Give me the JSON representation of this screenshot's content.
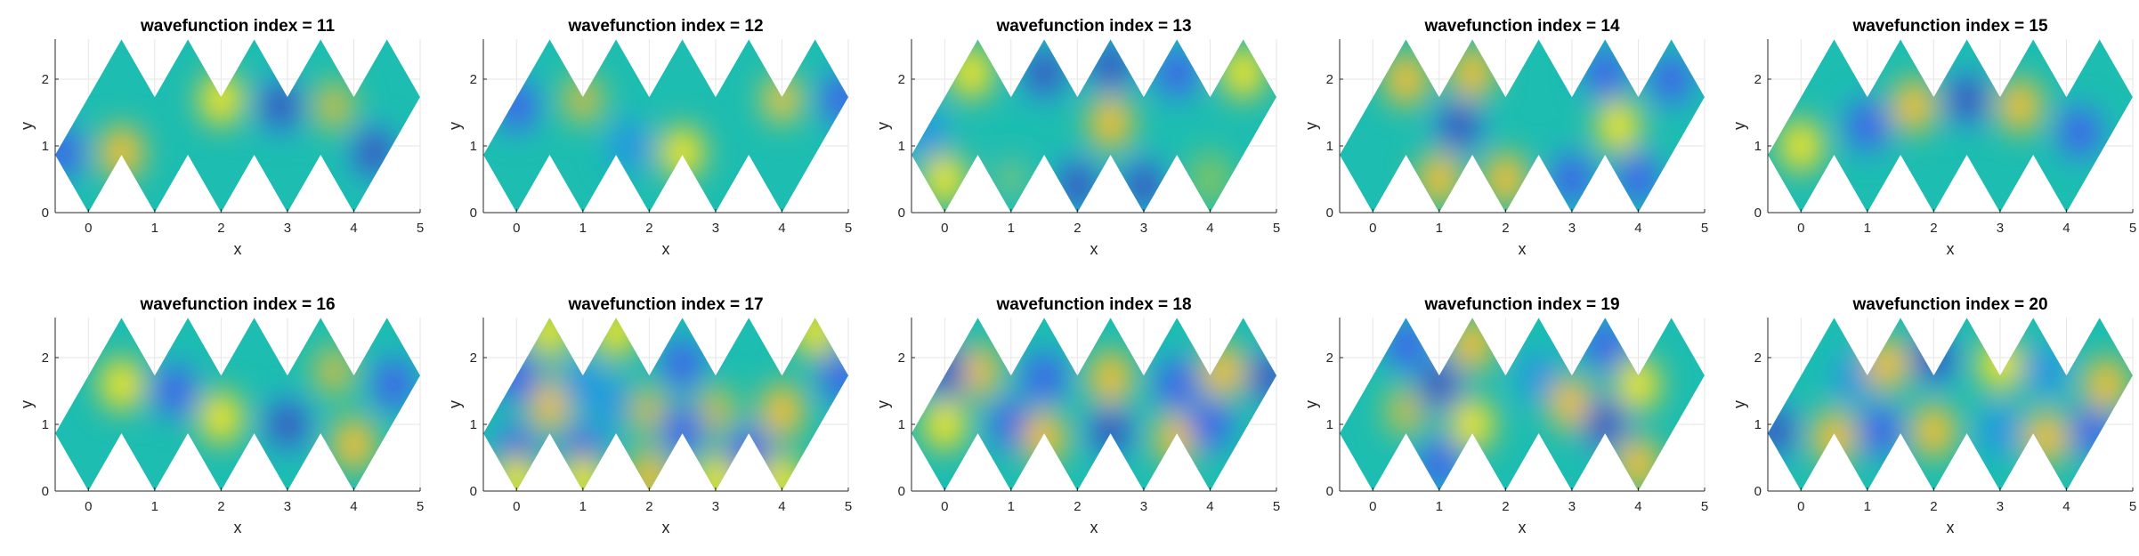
{
  "figure": {
    "layout": {
      "rows": 2,
      "cols": 5
    },
    "colormap": [
      "#3e26a8",
      "#4746eb",
      "#2f8ae6",
      "#1aa9d8",
      "#1dbdb1",
      "#79c468",
      "#d7ba3b",
      "#fdc332",
      "#f9fb15"
    ]
  },
  "chart_data": [
    {
      "type": "heatmap",
      "title": "wavefunction index = 11",
      "xlabel": "x",
      "ylabel": "y",
      "xlim": [
        -0.5,
        5
      ],
      "ylim": [
        0,
        2.6
      ],
      "xticks": [
        "0",
        "1",
        "2",
        "3",
        "4",
        "5"
      ],
      "yticks": [
        "0",
        "1",
        "2"
      ],
      "grid": true,
      "extrema": [
        {
          "x": 0.5,
          "y": 0.9,
          "v": 0.75
        },
        {
          "x": 2.0,
          "y": 1.7,
          "v": 0.9
        },
        {
          "x": 2.9,
          "y": 1.6,
          "v": -0.95
        },
        {
          "x": 3.7,
          "y": 1.6,
          "v": 0.55
        },
        {
          "x": 4.3,
          "y": 0.9,
          "v": -0.95
        },
        {
          "x": -0.4,
          "y": 0.9,
          "v": -0.7
        }
      ]
    },
    {
      "type": "heatmap",
      "title": "wavefunction index = 12",
      "xlabel": "x",
      "ylabel": "y",
      "xlim": [
        -0.5,
        5
      ],
      "ylim": [
        0,
        2.6
      ],
      "xticks": [
        "0",
        "1",
        "2",
        "3",
        "4",
        "5"
      ],
      "yticks": [
        "0",
        "1",
        "2"
      ],
      "grid": true,
      "extrema": [
        {
          "x": 0.0,
          "y": 1.6,
          "v": -0.85
        },
        {
          "x": 1.0,
          "y": 1.7,
          "v": 0.55
        },
        {
          "x": 2.5,
          "y": 0.9,
          "v": 0.95
        },
        {
          "x": 4.0,
          "y": 1.7,
          "v": 0.65
        },
        {
          "x": 4.9,
          "y": 1.7,
          "v": -0.8
        },
        {
          "x": 1.7,
          "y": 1.0,
          "v": -0.5
        }
      ]
    },
    {
      "type": "heatmap",
      "title": "wavefunction index = 13",
      "xlabel": "x",
      "ylabel": "y",
      "xlim": [
        -0.5,
        5
      ],
      "ylim": [
        0,
        2.6
      ],
      "xticks": [
        "0",
        "1",
        "2",
        "3",
        "4",
        "5"
      ],
      "yticks": [
        "0",
        "1",
        "2"
      ],
      "grid": true,
      "extrema": [
        {
          "x": 2.5,
          "y": 1.35,
          "v": 0.75
        },
        {
          "x": 0.4,
          "y": 2.1,
          "v": 0.9
        },
        {
          "x": 1.5,
          "y": 2.1,
          "v": -0.9
        },
        {
          "x": 2.5,
          "y": 2.2,
          "v": -0.9
        },
        {
          "x": 3.5,
          "y": 2.1,
          "v": -0.8
        },
        {
          "x": 4.5,
          "y": 2.1,
          "v": 0.9
        },
        {
          "x": 0.0,
          "y": 0.5,
          "v": 0.9
        },
        {
          "x": 1.0,
          "y": 0.5,
          "v": 0.2
        },
        {
          "x": 2.0,
          "y": 0.4,
          "v": -0.9
        },
        {
          "x": 3.0,
          "y": 0.4,
          "v": -0.9
        },
        {
          "x": 4.0,
          "y": 0.5,
          "v": 0.3
        },
        {
          "x": -0.3,
          "y": 1.2,
          "v": -0.6
        }
      ]
    },
    {
      "type": "heatmap",
      "title": "wavefunction index = 14",
      "xlabel": "x",
      "ylabel": "y",
      "xlim": [
        -0.5,
        5
      ],
      "ylim": [
        0,
        2.6
      ],
      "xticks": [
        "0",
        "1",
        "2",
        "3",
        "4",
        "5"
      ],
      "yticks": [
        "0",
        "1",
        "2"
      ],
      "grid": true,
      "extrema": [
        {
          "x": 1.3,
          "y": 1.3,
          "v": -0.9
        },
        {
          "x": 3.7,
          "y": 1.3,
          "v": 0.9
        },
        {
          "x": 0.5,
          "y": 2.0,
          "v": 0.85
        },
        {
          "x": 1.5,
          "y": 2.1,
          "v": 0.85
        },
        {
          "x": 3.5,
          "y": 2.1,
          "v": -0.85
        },
        {
          "x": 4.5,
          "y": 2.0,
          "v": -0.85
        },
        {
          "x": 1.0,
          "y": 0.5,
          "v": 0.8
        },
        {
          "x": 2.0,
          "y": 0.5,
          "v": 0.8
        },
        {
          "x": 3.0,
          "y": 0.5,
          "v": -0.8
        },
        {
          "x": 4.0,
          "y": 0.5,
          "v": -0.8
        }
      ]
    },
    {
      "type": "heatmap",
      "title": "wavefunction index = 15",
      "xlabel": "x",
      "ylabel": "y",
      "xlim": [
        -0.5,
        5
      ],
      "ylim": [
        0,
        2.6
      ],
      "xticks": [
        "0",
        "1",
        "2",
        "3",
        "4",
        "5"
      ],
      "yticks": [
        "0",
        "1",
        "2"
      ],
      "grid": true,
      "extrema": [
        {
          "x": 0.0,
          "y": 1.0,
          "v": 0.95
        },
        {
          "x": 1.0,
          "y": 1.3,
          "v": -0.8
        },
        {
          "x": 1.7,
          "y": 1.6,
          "v": 0.8
        },
        {
          "x": 2.5,
          "y": 1.7,
          "v": -0.9
        },
        {
          "x": 3.3,
          "y": 1.6,
          "v": 0.8
        },
        {
          "x": 4.2,
          "y": 1.2,
          "v": -0.8
        }
      ]
    },
    {
      "type": "heatmap",
      "title": "wavefunction index = 16",
      "xlabel": "x",
      "ylabel": "y",
      "xlim": [
        -0.5,
        5
      ],
      "ylim": [
        0,
        2.6
      ],
      "xticks": [
        "0",
        "1",
        "2",
        "3",
        "4",
        "5"
      ],
      "yticks": [
        "0",
        "1",
        "2"
      ],
      "grid": true,
      "extrema": [
        {
          "x": 0.5,
          "y": 1.6,
          "v": 0.95
        },
        {
          "x": 1.3,
          "y": 1.5,
          "v": -0.7
        },
        {
          "x": 2.0,
          "y": 1.1,
          "v": 0.9
        },
        {
          "x": 3.0,
          "y": 1.0,
          "v": -0.9
        },
        {
          "x": 4.0,
          "y": 0.7,
          "v": 0.7
        },
        {
          "x": 4.6,
          "y": 1.6,
          "v": -0.85
        },
        {
          "x": 3.7,
          "y": 1.8,
          "v": 0.5
        }
      ]
    },
    {
      "type": "heatmap",
      "title": "wavefunction index = 17",
      "xlabel": "x",
      "ylabel": "y",
      "xlim": [
        -0.5,
        5
      ],
      "ylim": [
        0,
        2.6
      ],
      "xticks": [
        "0",
        "1",
        "2",
        "3",
        "4",
        "5"
      ],
      "yticks": [
        "0",
        "1",
        "2"
      ],
      "grid": true,
      "extrema": [
        {
          "x": 0.5,
          "y": 1.3,
          "v": 0.75
        },
        {
          "x": 1.5,
          "y": 1.3,
          "v": -0.6
        },
        {
          "x": 2.0,
          "y": 1.2,
          "v": 0.6
        },
        {
          "x": 3.0,
          "y": 1.2,
          "v": 0.6
        },
        {
          "x": 4.0,
          "y": 1.2,
          "v": 0.75
        },
        {
          "x": 0.0,
          "y": 1.7,
          "v": -0.8
        },
        {
          "x": 1.0,
          "y": 1.6,
          "v": -0.6
        },
        {
          "x": 2.5,
          "y": 1.9,
          "v": -0.8
        },
        {
          "x": 4.9,
          "y": 1.7,
          "v": -0.8
        },
        {
          "x": 0.0,
          "y": 0.6,
          "v": -0.7
        },
        {
          "x": 1.0,
          "y": 0.6,
          "v": -0.7
        },
        {
          "x": 2.5,
          "y": 0.9,
          "v": -0.8
        },
        {
          "x": 3.5,
          "y": 0.6,
          "v": -0.7
        },
        {
          "x": 0.5,
          "y": 2.4,
          "v": 0.9
        },
        {
          "x": 1.5,
          "y": 2.4,
          "v": 0.9
        },
        {
          "x": 4.5,
          "y": 2.4,
          "v": 0.9
        },
        {
          "x": 0.0,
          "y": 0.15,
          "v": 0.9
        },
        {
          "x": 1.0,
          "y": 0.15,
          "v": 0.9
        },
        {
          "x": 2.0,
          "y": 0.2,
          "v": 0.8
        },
        {
          "x": 3.0,
          "y": 0.15,
          "v": 0.9
        },
        {
          "x": 4.0,
          "y": 0.15,
          "v": 0.9
        }
      ]
    },
    {
      "type": "heatmap",
      "title": "wavefunction index = 18",
      "xlabel": "x",
      "ylabel": "y",
      "xlim": [
        -0.5,
        5
      ],
      "ylim": [
        0,
        2.6
      ],
      "xticks": [
        "0",
        "1",
        "2",
        "3",
        "4",
        "5"
      ],
      "yticks": [
        "0",
        "1",
        "2"
      ],
      "grid": true,
      "extrema": [
        {
          "x": 0.0,
          "y": 1.0,
          "v": 0.95
        },
        {
          "x": 1.0,
          "y": 1.0,
          "v": -0.8
        },
        {
          "x": 1.5,
          "y": 0.8,
          "v": 0.7
        },
        {
          "x": 2.5,
          "y": 0.9,
          "v": -0.9
        },
        {
          "x": 3.5,
          "y": 0.8,
          "v": 0.7
        },
        {
          "x": 4.0,
          "y": 1.0,
          "v": -0.7
        },
        {
          "x": 0.5,
          "y": 1.8,
          "v": 0.8
        },
        {
          "x": 1.5,
          "y": 1.7,
          "v": -0.7
        },
        {
          "x": 2.5,
          "y": 1.7,
          "v": 0.8
        },
        {
          "x": 3.5,
          "y": 1.6,
          "v": -0.7
        },
        {
          "x": 4.2,
          "y": 1.8,
          "v": 0.8
        },
        {
          "x": 4.9,
          "y": 1.7,
          "v": -0.9
        },
        {
          "x": 0.0,
          "y": 1.8,
          "v": -0.9
        }
      ]
    },
    {
      "type": "heatmap",
      "title": "wavefunction index = 19",
      "xlabel": "x",
      "ylabel": "y",
      "xlim": [
        -0.5,
        5
      ],
      "ylim": [
        0,
        2.6
      ],
      "xticks": [
        "0",
        "1",
        "2",
        "3",
        "4",
        "5"
      ],
      "yticks": [
        "0",
        "1",
        "2"
      ],
      "grid": true,
      "extrema": [
        {
          "x": 0.5,
          "y": 1.2,
          "v": 0.6
        },
        {
          "x": 1.0,
          "y": 1.6,
          "v": -0.9
        },
        {
          "x": 1.5,
          "y": 1.0,
          "v": 0.9
        },
        {
          "x": 1.5,
          "y": 2.2,
          "v": 0.7
        },
        {
          "x": 2.5,
          "y": 1.7,
          "v": -0.5
        },
        {
          "x": 3.0,
          "y": 1.3,
          "v": 0.7
        },
        {
          "x": 3.5,
          "y": 1.0,
          "v": -0.9
        },
        {
          "x": 4.0,
          "y": 1.6,
          "v": 0.9
        },
        {
          "x": 4.0,
          "y": 0.4,
          "v": 0.8
        },
        {
          "x": 0.5,
          "y": 2.2,
          "v": -0.7
        },
        {
          "x": 1.0,
          "y": 0.4,
          "v": -0.8
        },
        {
          "x": 3.5,
          "y": 2.2,
          "v": -0.7
        }
      ]
    },
    {
      "type": "heatmap",
      "title": "wavefunction index = 20",
      "xlabel": "x",
      "ylabel": "y",
      "xlim": [
        -0.5,
        5
      ],
      "ylim": [
        0,
        2.6
      ],
      "xticks": [
        "0",
        "1",
        "2",
        "3",
        "4",
        "5"
      ],
      "yticks": [
        "0",
        "1",
        "2"
      ],
      "grid": true,
      "extrema": [
        {
          "x": -0.4,
          "y": 0.9,
          "v": -0.9
        },
        {
          "x": 0.5,
          "y": 0.8,
          "v": 0.8
        },
        {
          "x": 1.2,
          "y": 0.9,
          "v": -0.7
        },
        {
          "x": 2.0,
          "y": 0.9,
          "v": 0.8
        },
        {
          "x": 3.0,
          "y": 0.9,
          "v": -0.6
        },
        {
          "x": 3.7,
          "y": 0.8,
          "v": 0.7
        },
        {
          "x": 4.4,
          "y": 0.9,
          "v": -0.8
        },
        {
          "x": 0.8,
          "y": 1.7,
          "v": -0.6
        },
        {
          "x": 1.3,
          "y": 1.9,
          "v": 0.7
        },
        {
          "x": 2.0,
          "y": 2.0,
          "v": -0.9
        },
        {
          "x": 3.0,
          "y": 1.9,
          "v": 0.9
        },
        {
          "x": 3.7,
          "y": 1.8,
          "v": -0.5
        },
        {
          "x": 4.6,
          "y": 1.6,
          "v": 0.7
        }
      ]
    }
  ]
}
